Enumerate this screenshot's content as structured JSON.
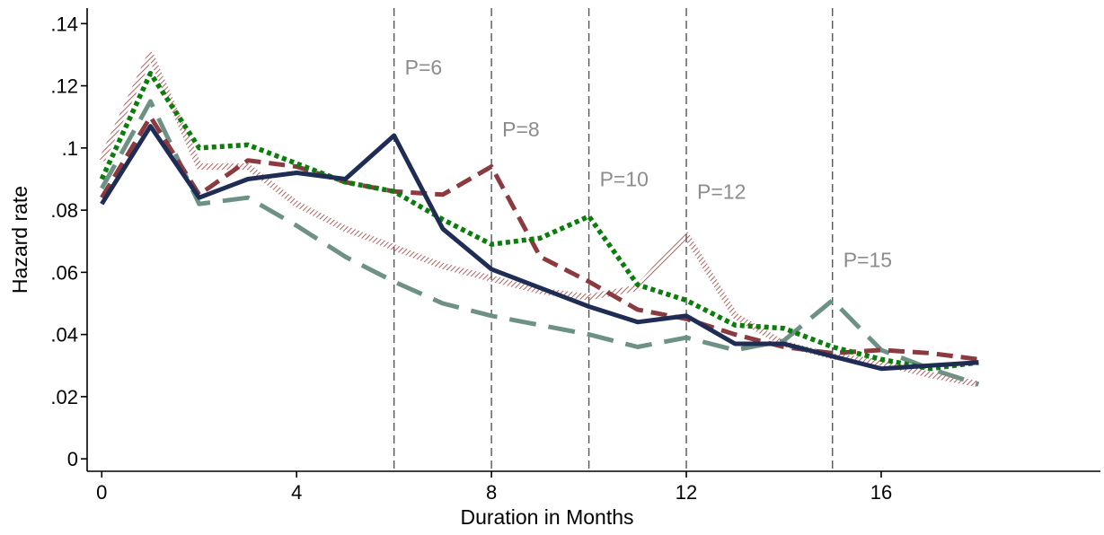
{
  "chart_data": {
    "type": "line",
    "title": "",
    "xlabel": "Duration in Months",
    "ylabel": "Hazard rate",
    "xlim": [
      -0.3,
      20.5
    ],
    "ylim": [
      -0.004,
      0.145
    ],
    "x_ticks": [
      0,
      4,
      8,
      12,
      16
    ],
    "x_tick_labels": [
      "0",
      "4",
      "8",
      "12",
      "16"
    ],
    "y_ticks": [
      0,
      0.02,
      0.04,
      0.06,
      0.08,
      0.1,
      0.12,
      0.14
    ],
    "y_tick_labels": [
      "0",
      ".02",
      ".04",
      ".06",
      ".08",
      ".1",
      ".12",
      ".14"
    ],
    "grid": false,
    "legend": "none",
    "x": [
      0,
      1,
      2,
      3,
      4,
      5,
      6,
      7,
      8,
      9,
      10,
      11,
      12,
      13,
      14,
      15,
      16,
      17,
      18
    ],
    "series": [
      {
        "values": [
          0.082,
          0.107,
          0.084,
          0.09,
          0.092,
          0.09,
          0.104,
          0.074,
          0.061,
          0.055,
          0.049,
          0.044,
          0.046,
          0.037,
          0.037,
          0.033,
          0.029,
          0.03,
          0.031
        ],
        "color": "#1f2d55",
        "style": "solid"
      },
      {
        "values": [
          0.084,
          0.11,
          0.085,
          0.096,
          0.094,
          0.089,
          0.086,
          0.085,
          0.094,
          0.065,
          0.057,
          0.048,
          0.045,
          0.04,
          0.036,
          0.034,
          0.035,
          0.034,
          0.032
        ],
        "color": "#8b3a3f",
        "style": "dash"
      },
      {
        "values": [
          0.09,
          0.124,
          0.1,
          0.101,
          0.095,
          0.089,
          0.086,
          0.077,
          0.069,
          0.071,
          0.078,
          0.056,
          0.051,
          0.043,
          0.042,
          0.036,
          0.032,
          0.029,
          0.031
        ],
        "color": "#0a7d0a",
        "style": "dot"
      },
      {
        "values": [
          0.096,
          0.13,
          0.094,
          0.094,
          0.082,
          0.074,
          0.068,
          0.062,
          0.058,
          0.054,
          0.052,
          0.055,
          0.072,
          0.046,
          0.037,
          0.033,
          0.031,
          0.027,
          0.024
        ],
        "color": "#a33a3a",
        "style": "hatched"
      },
      {
        "values": [
          0.087,
          0.115,
          0.082,
          0.084,
          0.075,
          0.065,
          0.057,
          0.05,
          0.046,
          0.043,
          0.04,
          0.036,
          0.039,
          0.035,
          0.038,
          0.051,
          0.035,
          0.029,
          0.024
        ],
        "color": "#6e9186",
        "style": "longdash"
      }
    ],
    "reference_lines": [
      {
        "x": 6,
        "label": "P=6",
        "label_y": 0.126
      },
      {
        "x": 8,
        "label": "P=8",
        "label_y": 0.106
      },
      {
        "x": 10,
        "label": "P=10",
        "label_y": 0.09
      },
      {
        "x": 12,
        "label": "P=12",
        "label_y": 0.086
      },
      {
        "x": 15,
        "label": "P=15",
        "label_y": 0.064
      }
    ]
  }
}
